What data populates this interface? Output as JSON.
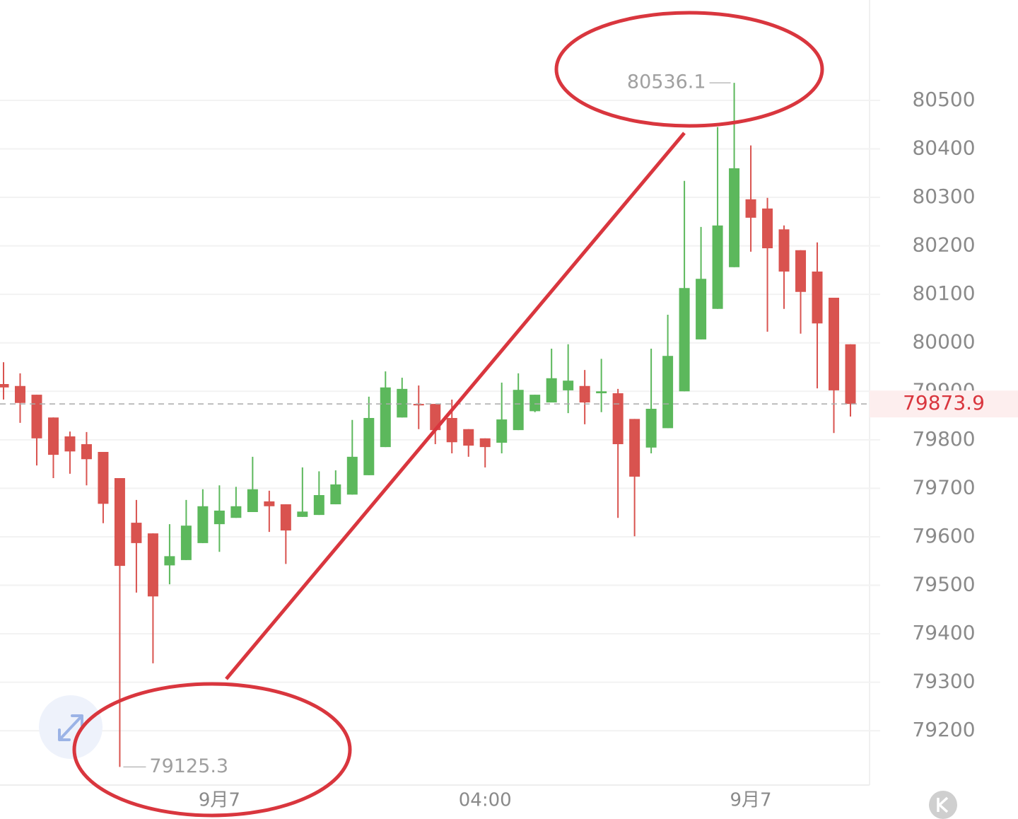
{
  "chart_data": {
    "type": "candlestick",
    "categories": [
      null,
      null,
      null,
      null,
      null,
      null,
      null,
      null,
      null,
      null,
      null,
      null,
      null,
      "9月7",
      null,
      null,
      null,
      null,
      null,
      null,
      null,
      null,
      null,
      null,
      null,
      null,
      null,
      null,
      null,
      "04:00",
      null,
      null,
      null,
      null,
      null,
      null,
      null,
      null,
      null,
      null,
      null,
      null,
      null,
      null,
      null,
      "9月7",
      null,
      null,
      null,
      null,
      null,
      null
    ],
    "open": [
      79915,
      79911,
      79893,
      79846,
      79807,
      79791,
      79775,
      79721,
      79629,
      79607,
      79541,
      79552,
      79587,
      79626,
      79639,
      79651,
      79673,
      79667,
      79641,
      79645,
      79667,
      79687,
      79727,
      79785,
      79846,
      79874,
      79874,
      79845,
      79822,
      79803,
      79794,
      79820,
      79859,
      79877,
      79902,
      79911,
      79896,
      79896,
      79843,
      79784,
      79824,
      79900,
      80007,
      80070,
      80156,
      80296,
      80277,
      80234,
      80191,
      80147,
      80093,
      79997
    ],
    "high": [
      79960,
      79937,
      79893,
      79846,
      79817,
      79816,
      79775,
      79721,
      79676,
      79607,
      79626,
      79676,
      79698,
      79706,
      79703,
      79765,
      79695,
      79667,
      79743,
      79735,
      79737,
      79841,
      79889,
      79941,
      79928,
      79912,
      79874,
      79883,
      79822,
      79803,
      79918,
      79937,
      79893,
      79988,
      79997,
      79944,
      79967,
      79905,
      79843,
      79988,
      80058,
      80334,
      80239,
      80445,
      80536.1,
      80407,
      80299,
      80242,
      80191,
      80207,
      80093,
      79997
    ],
    "low": [
      79883,
      79835,
      79747,
      79721,
      79730,
      79706,
      79628,
      79125.3,
      79485,
      79339,
      79502,
      79552,
      79587,
      79569,
      79639,
      79651,
      79610,
      79544,
      79641,
      79645,
      79667,
      79687,
      79727,
      79785,
      79846,
      79822,
      79791,
      79772,
      79765,
      79743,
      79772,
      79820,
      79857,
      79877,
      79855,
      79832,
      79857,
      79639,
      79601,
      79772,
      79824,
      79900,
      80007,
      80070,
      80156,
      80188,
      80023,
      80070,
      80019,
      79906,
      79814,
      79848
    ],
    "close": [
      79908,
      79876,
      79803,
      79769,
      79776,
      79760,
      79668,
      79540,
      79587,
      79477,
      79560,
      79623,
      79663,
      79654,
      79663,
      79698,
      79663,
      79613,
      79652,
      79686,
      79708,
      79765,
      79845,
      79908,
      79905,
      79871,
      79820,
      79795,
      79788,
      79785,
      79842,
      79903,
      79893,
      79927,
      79922,
      79877,
      79900,
      79791,
      79724,
      79864,
      79973,
      80113,
      80132,
      80242,
      80360,
      80258,
      80195,
      80147,
      80105,
      80040,
      79902,
      79873.9
    ],
    "up_color": "#5cb85c",
    "down_color": "#d9534f",
    "ylim": [
      79088,
      80707
    ],
    "yticks": [
      79200,
      79300,
      79400,
      79500,
      79600,
      79700,
      79800,
      79900,
      80000,
      80100,
      80200,
      80300,
      80400,
      80500
    ],
    "grid": true
  }
}
